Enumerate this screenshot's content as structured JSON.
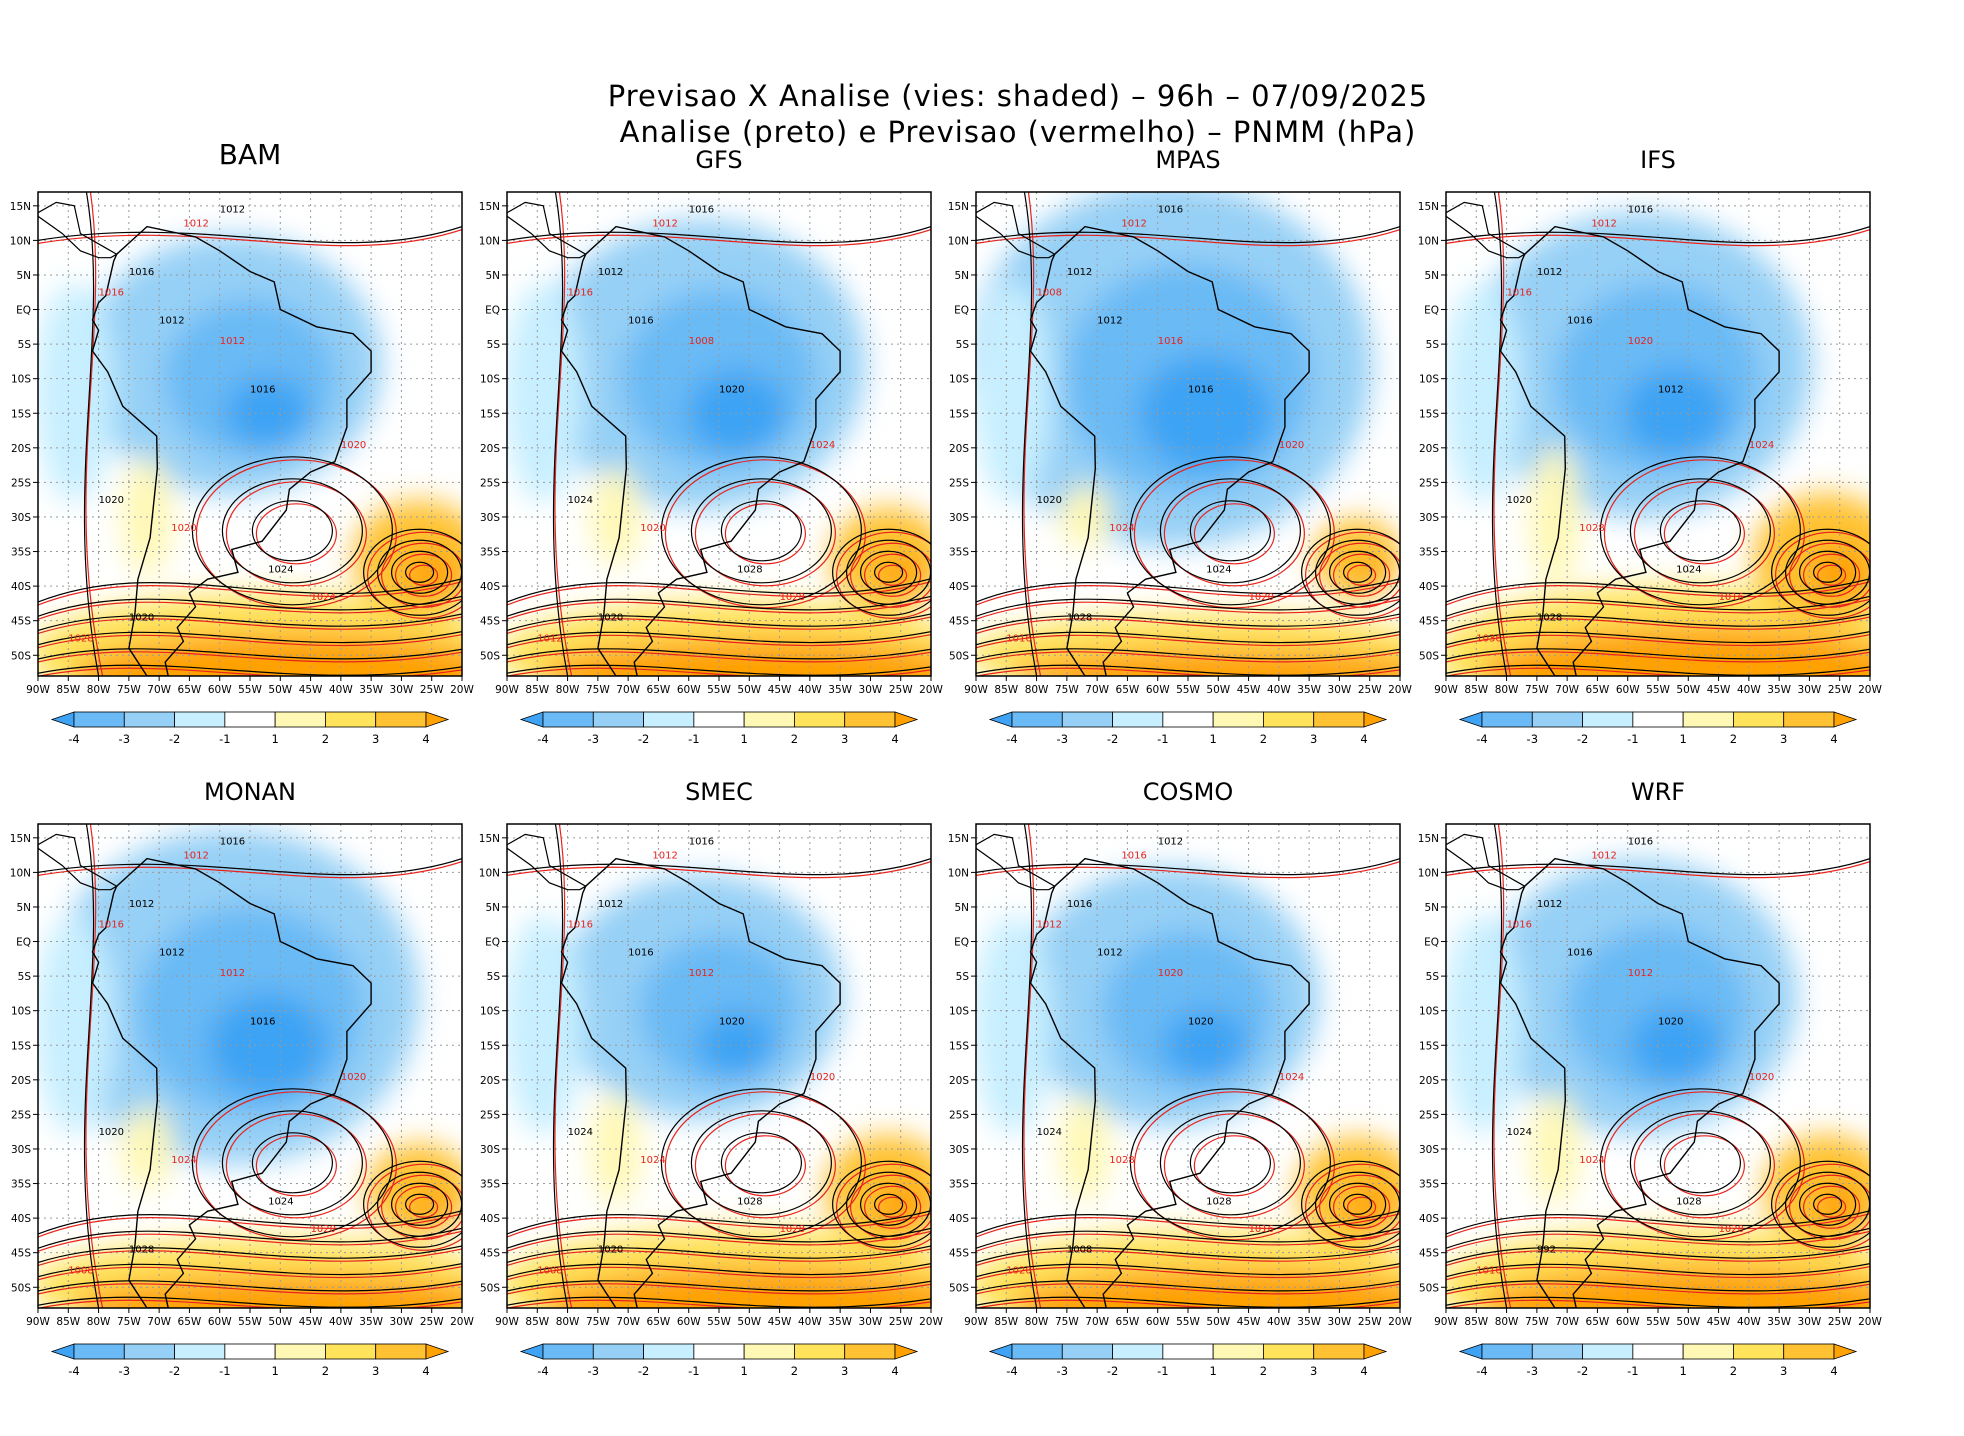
{
  "figure": {
    "title_line1": "Previsao X Analise (vies: shaded) – 96h – 07/09/2025",
    "title_line2": "Analise (preto) e Previsao (vermelho) – PNMM (hPa)"
  },
  "chart_data": {
    "type": "heatmap",
    "variable": "PNMM (hPa)",
    "shading": "vies (forecast minus analysis bias)",
    "lead_time": "96h",
    "date": "07/09/2025",
    "contours": {
      "analysis_color": "#000000",
      "forecast_color": "#e8231c"
    },
    "xlim_deg": [
      -90,
      -20
    ],
    "ylim_deg": [
      -53,
      17
    ],
    "x_ticks": [
      "90W",
      "85W",
      "80W",
      "75W",
      "70W",
      "65W",
      "60W",
      "55W",
      "50W",
      "45W",
      "40W",
      "35W",
      "30W",
      "25W",
      "20W"
    ],
    "y_ticks": [
      "15N",
      "10N",
      "5N",
      "EQ",
      "5S",
      "10S",
      "15S",
      "20S",
      "25S",
      "30S",
      "35S",
      "40S",
      "45S",
      "50S"
    ],
    "colorbar": {
      "labels": [
        "-4",
        "-3",
        "-2",
        "-1",
        "1",
        "2",
        "3",
        "4"
      ],
      "bins": [
        {
          "range": "< -4",
          "color": "#3ea3f4"
        },
        {
          "range": "-4 to -3",
          "color": "#69baf5"
        },
        {
          "range": "-3 to -2",
          "color": "#96d0f6"
        },
        {
          "range": "-2 to -1",
          "color": "#c8efff"
        },
        {
          "range": "-1 to 1",
          "color": "#ffffff"
        },
        {
          "range": "1 to 2",
          "color": "#fff8b4"
        },
        {
          "range": "2 to 3",
          "color": "#ffe35a"
        },
        {
          "range": "3 to 4",
          "color": "#ffc233"
        },
        {
          "range": "> 4",
          "color": "#ffa100"
        }
      ]
    },
    "panels": [
      {
        "model": "BAM",
        "blue_strength": 0.6,
        "warm_strength": 0.85,
        "labels_black": [
          "1012",
          "1016",
          "1012",
          "1016",
          "1020",
          "1024",
          "1020"
        ],
        "labels_red": [
          "1012",
          "1016",
          "1012",
          "1020",
          "1020",
          "1024",
          "1028"
        ]
      },
      {
        "model": "GFS",
        "blue_strength": 0.7,
        "warm_strength": 0.7,
        "labels_black": [
          "1016",
          "1012",
          "1016",
          "1020",
          "1024",
          "1028",
          "1020"
        ],
        "labels_red": [
          "1012",
          "1016",
          "1008",
          "1024",
          "1020",
          "1028",
          "1012"
        ]
      },
      {
        "model": "MPAS",
        "blue_strength": 0.95,
        "warm_strength": 0.45,
        "labels_black": [
          "1016",
          "1012",
          "1012",
          "1016",
          "1020",
          "1024",
          "1028"
        ],
        "labels_red": [
          "1012",
          "1008",
          "1016",
          "1020",
          "1024",
          "1020",
          "1016"
        ]
      },
      {
        "model": "IFS",
        "blue_strength": 0.75,
        "warm_strength": 1.0,
        "labels_black": [
          "1016",
          "1012",
          "1016",
          "1012",
          "1020",
          "1024",
          "1028"
        ],
        "labels_red": [
          "1012",
          "1016",
          "1020",
          "1024",
          "1028",
          "1016",
          "1036"
        ]
      },
      {
        "model": "MONAN",
        "blue_strength": 0.85,
        "warm_strength": 0.6,
        "labels_black": [
          "1016",
          "1012",
          "1012",
          "1016",
          "1020",
          "1024",
          "1028"
        ],
        "labels_red": [
          "1012",
          "1016",
          "1012",
          "1020",
          "1024",
          "1020",
          "1008"
        ]
      },
      {
        "model": "SMEC",
        "blue_strength": 0.55,
        "warm_strength": 0.8,
        "labels_black": [
          "1016",
          "1012",
          "1016",
          "1020",
          "1024",
          "1028",
          "1020"
        ],
        "labels_red": [
          "1012",
          "1016",
          "1012",
          "1020",
          "1024",
          "1028",
          "1008"
        ]
      },
      {
        "model": "COSMO",
        "blue_strength": 0.6,
        "warm_strength": 0.75,
        "labels_black": [
          "1012",
          "1016",
          "1012",
          "1020",
          "1024",
          "1028",
          "1008"
        ],
        "labels_red": [
          "1016",
          "1012",
          "1020",
          "1024",
          "1028",
          "1016",
          "1020"
        ]
      },
      {
        "model": "WRF",
        "blue_strength": 0.65,
        "warm_strength": 0.8,
        "labels_black": [
          "1016",
          "1012",
          "1016",
          "1020",
          "1024",
          "1028",
          "992"
        ],
        "labels_red": [
          "1012",
          "1016",
          "1012",
          "1020",
          "1024",
          "1028",
          "1016"
        ]
      }
    ]
  }
}
